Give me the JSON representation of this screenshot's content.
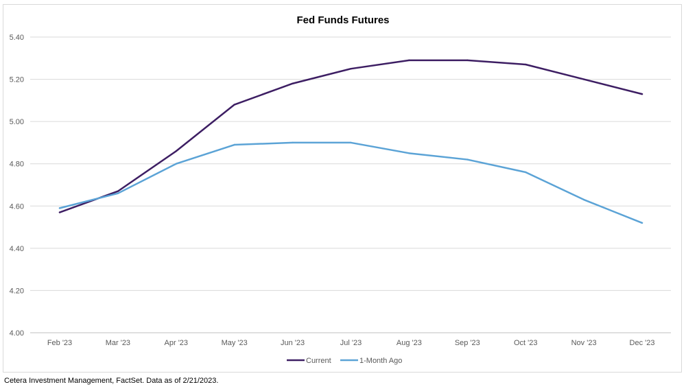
{
  "chart_data": {
    "type": "line",
    "title": "Fed Funds Futures",
    "xlabel": "",
    "ylabel": "",
    "categories": [
      "Feb '23",
      "Mar '23",
      "Apr '23",
      "May '23",
      "Jun '23",
      "Jul '23",
      "Aug '23",
      "Sep '23",
      "Oct '23",
      "Nov '23",
      "Dec '23"
    ],
    "yticks": [
      "4.00",
      "4.20",
      "4.40",
      "4.60",
      "4.80",
      "5.00",
      "5.20",
      "5.40"
    ],
    "ylim": [
      4.0,
      5.4
    ],
    "grid": true,
    "legend_position": "bottom",
    "series": [
      {
        "name": "Current",
        "color": "#3d1e63",
        "values": [
          4.57,
          4.67,
          4.86,
          5.08,
          5.18,
          5.25,
          5.29,
          5.29,
          5.27,
          5.2,
          5.13
        ]
      },
      {
        "name": "1-Month Ago",
        "color": "#5ba3d6",
        "values": [
          4.59,
          4.66,
          4.8,
          4.89,
          4.9,
          4.9,
          4.85,
          4.82,
          4.76,
          4.63,
          4.52
        ]
      }
    ]
  },
  "source_note": "Cetera Investment Management, FactSet. Data as of 2/21/2023."
}
